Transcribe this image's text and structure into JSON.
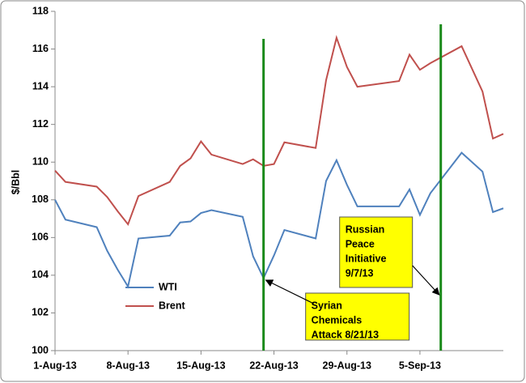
{
  "chart_data": {
    "type": "line",
    "y_label": "$/Bbl",
    "x": [
      "2013-08-01",
      "2013-08-02",
      "2013-08-05",
      "2013-08-06",
      "2013-08-07",
      "2013-08-08",
      "2013-08-09",
      "2013-08-12",
      "2013-08-13",
      "2013-08-14",
      "2013-08-15",
      "2013-08-16",
      "2013-08-19",
      "2013-08-20",
      "2013-08-21",
      "2013-08-22",
      "2013-08-23",
      "2013-08-26",
      "2013-08-27",
      "2013-08-28",
      "2013-08-29",
      "2013-08-30",
      "2013-09-03",
      "2013-09-04",
      "2013-09-05",
      "2013-09-06",
      "2013-09-09",
      "2013-09-11",
      "2013-09-12",
      "2013-09-13"
    ],
    "series": [
      {
        "name": "WTI",
        "color": "#4f81bd",
        "values": [
          108.0,
          106.95,
          106.55,
          105.3,
          104.3,
          103.4,
          105.95,
          106.1,
          106.8,
          106.85,
          107.3,
          107.45,
          107.1,
          105.0,
          103.85,
          105.05,
          106.4,
          105.95,
          109.0,
          110.1,
          108.8,
          107.65,
          107.65,
          108.55,
          107.2,
          108.35,
          110.5,
          109.5,
          107.35,
          107.55
        ]
      },
      {
        "name": "Brent",
        "color": "#c0504d",
        "values": [
          109.55,
          108.95,
          108.7,
          108.15,
          107.4,
          106.7,
          108.2,
          108.95,
          109.8,
          110.2,
          111.1,
          110.4,
          109.9,
          110.15,
          109.8,
          109.9,
          111.05,
          110.75,
          114.35,
          116.6,
          115.05,
          114.0,
          114.3,
          115.7,
          114.9,
          115.25,
          116.15,
          113.75,
          111.25,
          111.5
        ]
      }
    ],
    "xlim": [
      "2013-08-01",
      "2013-09-13"
    ],
    "xticks": [
      {
        "value": "2013-08-01",
        "label": "1-Aug-13"
      },
      {
        "value": "2013-08-08",
        "label": "8-Aug-13"
      },
      {
        "value": "2013-08-15",
        "label": "15-Aug-13"
      },
      {
        "value": "2013-08-22",
        "label": "22-Aug-13"
      },
      {
        "value": "2013-08-29",
        "label": "29-Aug-13"
      },
      {
        "value": "2013-09-05",
        "label": "5-Sep-13"
      }
    ],
    "ylim": [
      100,
      118
    ],
    "yticks": [
      100,
      102,
      104,
      106,
      108,
      110,
      112,
      114,
      116,
      118
    ],
    "grid": false,
    "annotations": [
      {
        "x": "2013-08-21",
        "lines": [
          "Syrian",
          "Chemicals",
          "Attack 8/21/13"
        ],
        "color": "#ffff00",
        "line_color": "#1a8a1a"
      },
      {
        "x": "2013-09-07",
        "lines": [
          "Russian",
          "Peace",
          "Initiative",
          "9/7/13"
        ],
        "color": "#ffff00",
        "line_color": "#1a8a1a"
      }
    ]
  }
}
